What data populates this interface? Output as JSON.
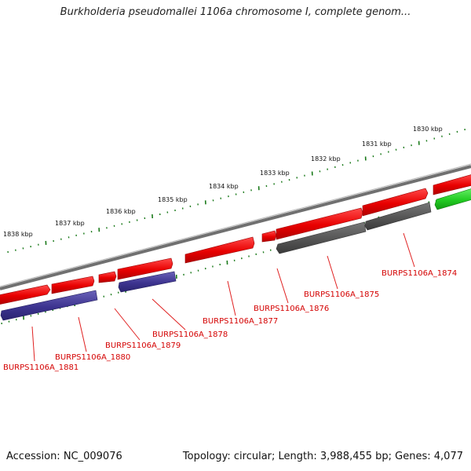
{
  "title": "Burkholderia pseudomallei 1106a chromosome I, complete genom...",
  "footer": {
    "accession": "Accession: NC_009076",
    "summary": "Topology: circular; Length: 3,988,455 bp; Genes: 4,077"
  },
  "scale_labels": [
    "1838 kbp",
    "1837 kbp",
    "1836 kbp",
    "1835 kbp",
    "1834 kbp",
    "1833 kbp",
    "1832 kbp",
    "1831 kbp",
    "1830 kbp"
  ],
  "gene_labels": [
    "BURPS1106A_1881",
    "BURPS1106A_1880",
    "BURPS1106A_1879",
    "BURPS1106A_1878",
    "BURPS1106A_1877",
    "BURPS1106A_1876",
    "BURPS1106A_1875",
    "BURPS1106A_1874"
  ],
  "colors": {
    "forward_gene": "#ee1111",
    "reverse_gene": "#3d3490",
    "other_gene": "#555555",
    "rna_gene": "#22cc22",
    "tick": "#1a7a1a",
    "backbone": "#888888",
    "label": "#d40000"
  }
}
